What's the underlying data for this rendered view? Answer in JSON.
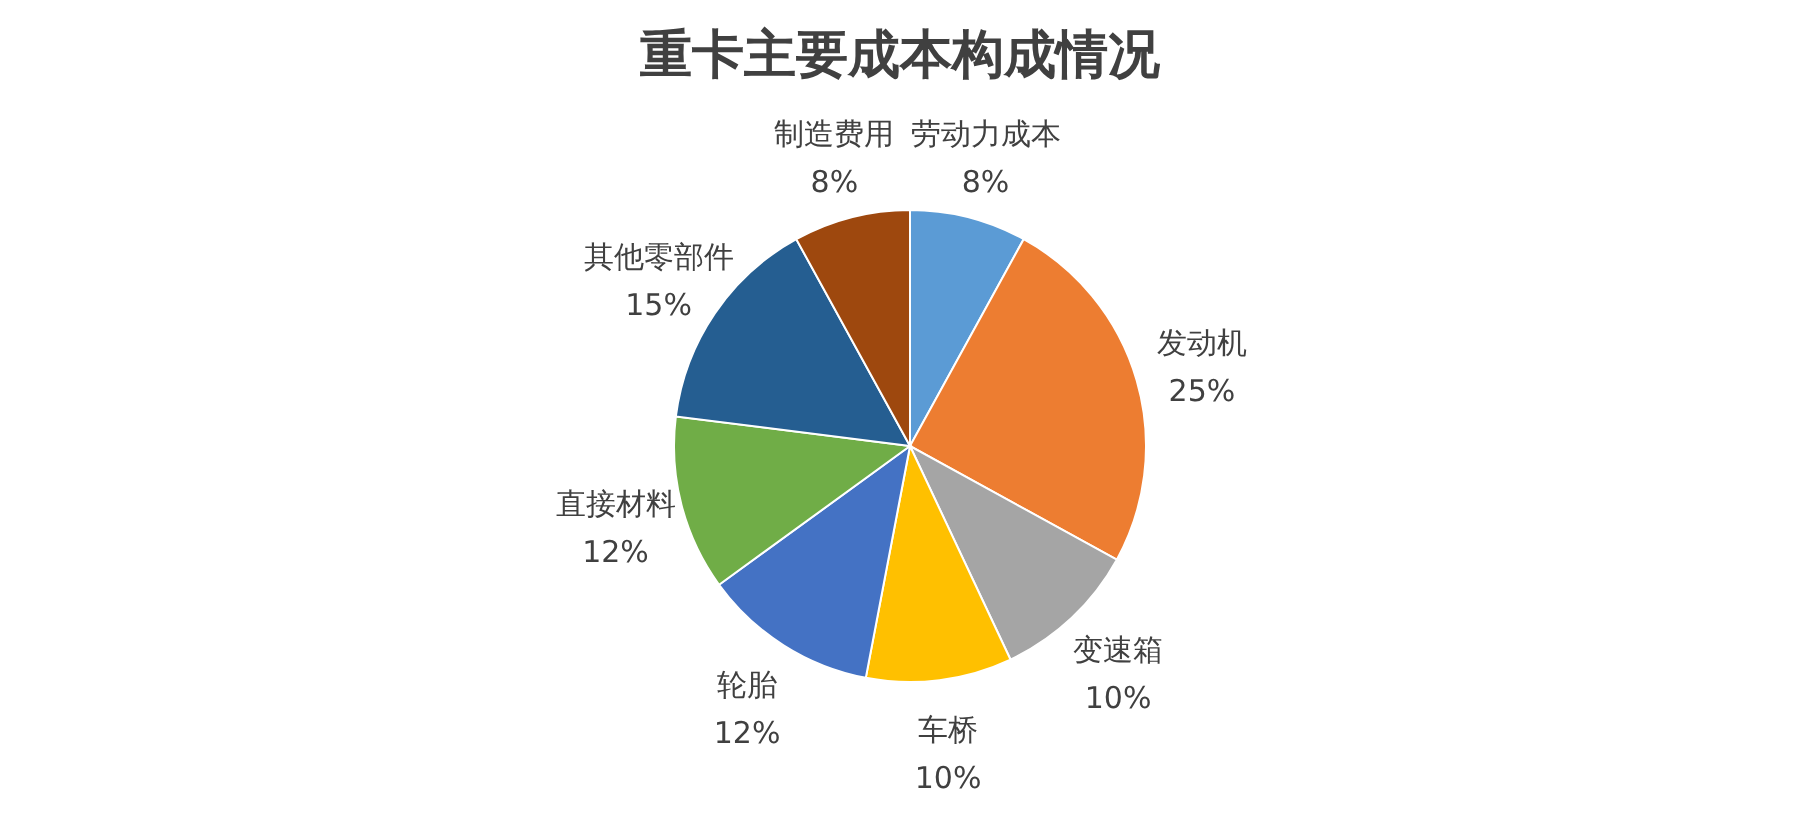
{
  "chart_data": {
    "type": "pie",
    "title": "重卡主要成本构成情况",
    "categories": [
      "劳动力成本",
      "发动机",
      "变速箱",
      "车桥",
      "轮胎",
      "直接材料",
      "其他零部件",
      "制造费用"
    ],
    "values": [
      8,
      25,
      10,
      10,
      12,
      12,
      15,
      8
    ],
    "colors": [
      "#5b9bd5",
      "#ed7d31",
      "#a5a5a5",
      "#ffc000",
      "#4472c4",
      "#70ad47",
      "#255e91",
      "#9e480e"
    ],
    "value_labels": [
      "8%",
      "25%",
      "10%",
      "10%",
      "12%",
      "12%",
      "15%",
      "8%"
    ]
  }
}
